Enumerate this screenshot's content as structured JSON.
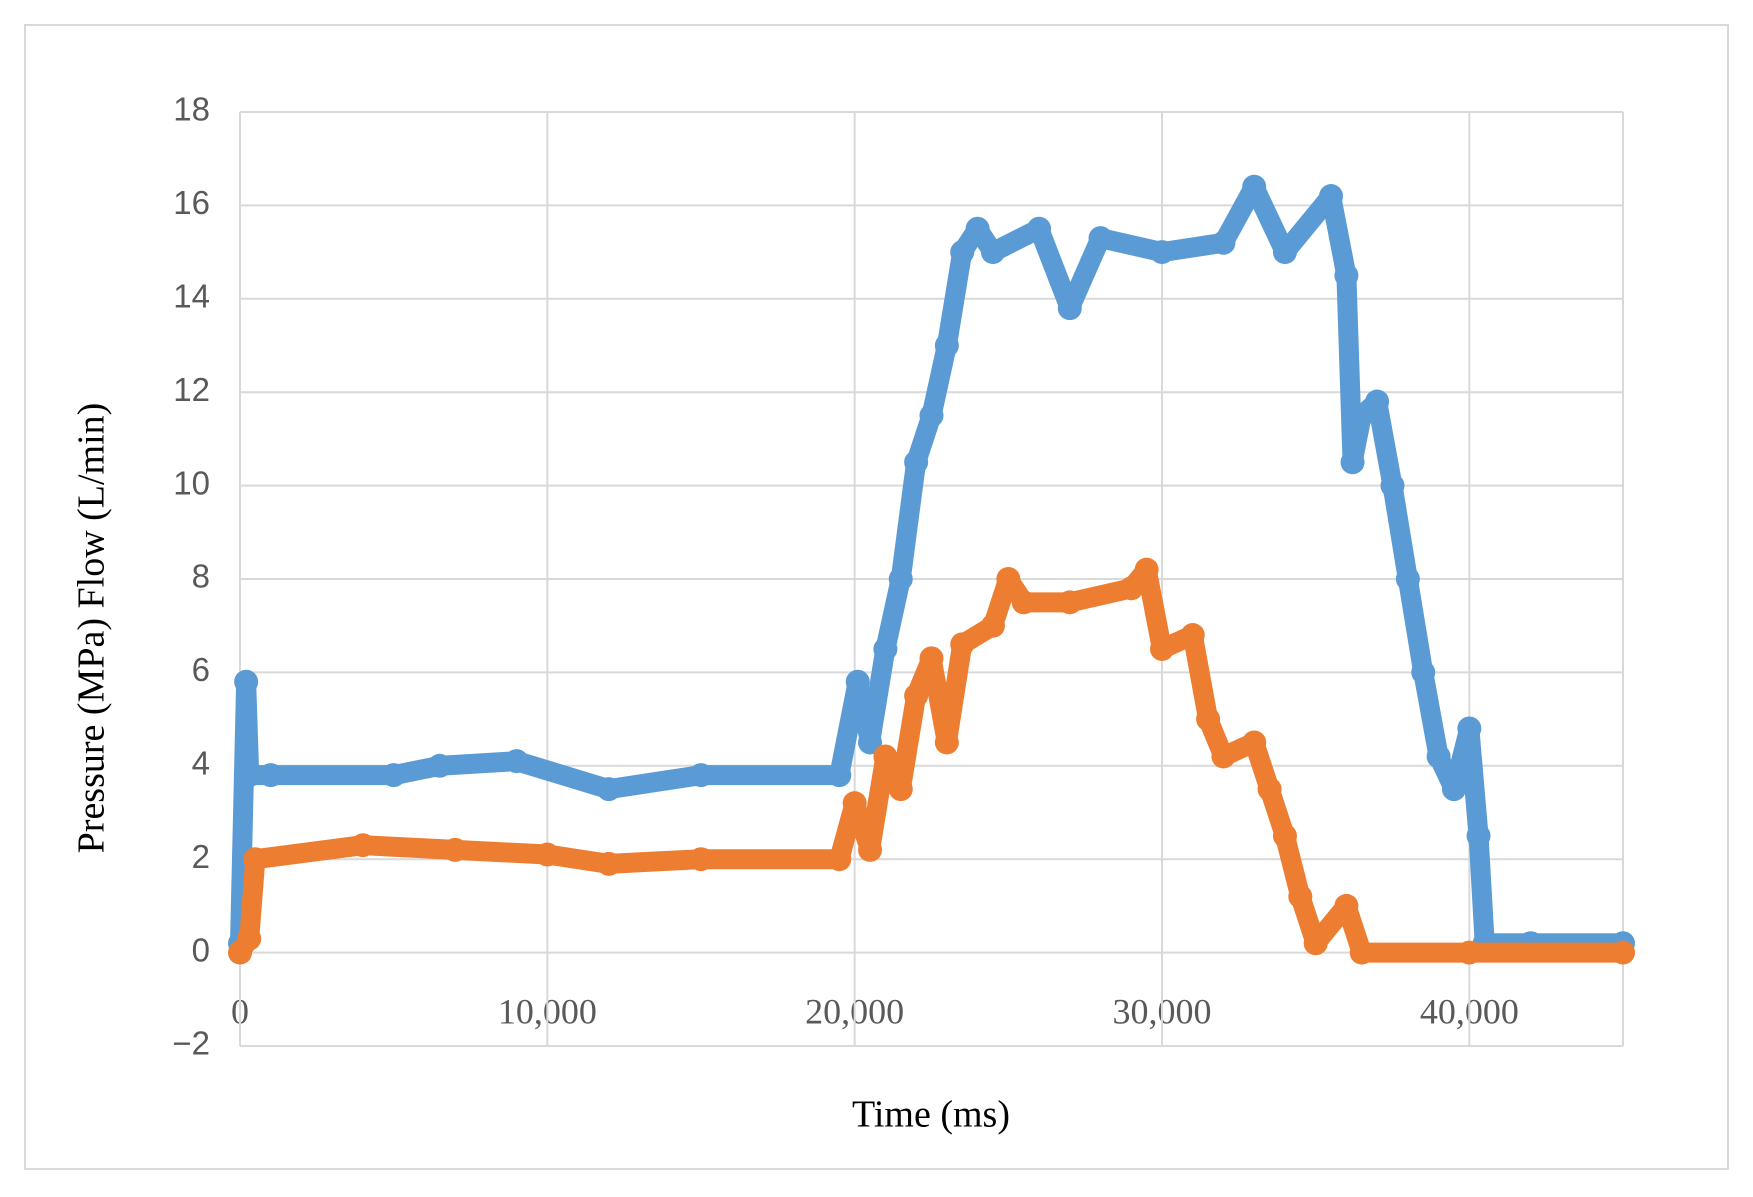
{
  "chart_data": {
    "type": "scatter",
    "x_label": "Time  (ms)",
    "y_label": "Pressure (MPa) Flow (L/min)",
    "xlim": [
      0,
      45000
    ],
    "xticks": [
      0,
      {
        "value": 10000,
        "label": "10,000"
      },
      {
        "value": 20000,
        "label": "20,000"
      },
      {
        "value": 30000,
        "label": "30,000"
      },
      {
        "value": 40000,
        "label": "40,000"
      }
    ],
    "ylim": [
      -2,
      18
    ],
    "yticks": [
      {
        "value": -2,
        "label": "−2"
      },
      0,
      2,
      4,
      6,
      8,
      10,
      12,
      14,
      16,
      18
    ],
    "grid": true,
    "series": [
      {
        "color": "#5b9bd5",
        "x": [
          0,
          200,
          300,
          1000,
          5000,
          6500,
          9000,
          12000,
          15000,
          19500,
          20100,
          20500,
          21000,
          21500,
          22000,
          22500,
          23000,
          23500,
          24000,
          24500,
          26000,
          27000,
          28000,
          30000,
          32000,
          33000,
          34000,
          35500,
          36000,
          36200,
          36500,
          37000,
          37500,
          38000,
          38500,
          39000,
          39500,
          40000,
          40300,
          40500,
          42000,
          45000
        ],
        "values": [
          0.2,
          5.8,
          3.8,
          3.8,
          3.8,
          4.0,
          4.1,
          3.5,
          3.8,
          3.8,
          5.8,
          4.5,
          6.5,
          8,
          10.5,
          11.5,
          13,
          15,
          15.5,
          15,
          15.5,
          13.8,
          15.3,
          15,
          15.2,
          16.4,
          15,
          16.2,
          14.5,
          10.5,
          11.5,
          11.8,
          10,
          8,
          6,
          4.2,
          3.5,
          4.8,
          2.5,
          0.2,
          0.2,
          0.2
        ]
      },
      {
        "color": "#ed7d31",
        "x": [
          0,
          300,
          500,
          4000,
          7000,
          10000,
          12000,
          15000,
          19500,
          20000,
          20500,
          21000,
          21500,
          22000,
          22500,
          23000,
          23500,
          24500,
          25000,
          25500,
          27000,
          29000,
          29500,
          30000,
          31000,
          31500,
          32000,
          33000,
          33500,
          34000,
          34500,
          35000,
          36000,
          36500,
          40000,
          45000
        ],
        "values": [
          0,
          0.3,
          2,
          2.3,
          2.2,
          2.1,
          1.9,
          2,
          2,
          3.2,
          2.2,
          4.2,
          3.5,
          5.5,
          6.3,
          4.5,
          6.6,
          7,
          8,
          7.5,
          7.5,
          7.8,
          8.2,
          6.5,
          6.8,
          5,
          4.2,
          4.5,
          3.5,
          2.5,
          1.2,
          0.2,
          1,
          0,
          0,
          0
        ]
      }
    ]
  }
}
